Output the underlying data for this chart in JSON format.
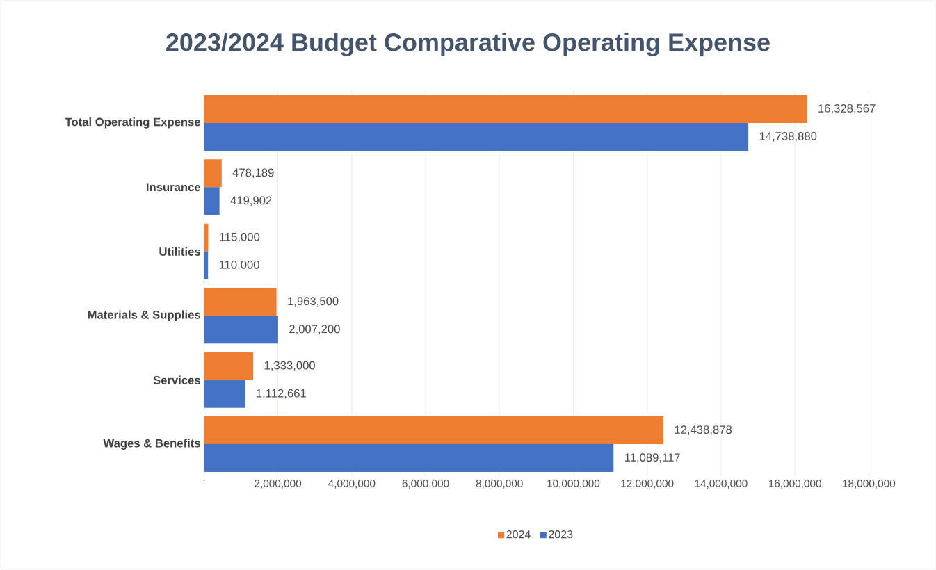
{
  "chart_data": {
    "type": "bar",
    "orientation": "horizontal",
    "title": "2023/2024 Budget Comparative Operating Expense",
    "categories": [
      "Total Operating Expense",
      "Insurance",
      "Utilities",
      "Materials & Supplies",
      "Services",
      "Wages & Benefits"
    ],
    "series": [
      {
        "name": "2024",
        "color": "#ed7d31",
        "values": [
          16328567,
          478189,
          115000,
          1963500,
          1333000,
          12438878
        ],
        "value_labels": [
          "16,328,567",
          "478,189",
          "115,000",
          "1,963,500",
          "1,333,000",
          "12,438,878"
        ]
      },
      {
        "name": "2023",
        "color": "#4472c4",
        "values": [
          14738880,
          419902,
          110000,
          2007200,
          1112661,
          11089117
        ],
        "value_labels": [
          "14,738,880",
          "419,902",
          "110,000",
          "2,007,200",
          "1,112,661",
          "11,089,117"
        ]
      }
    ],
    "xlim": [
      0,
      18000000
    ],
    "xticks": [
      {
        "value": 0,
        "label": "-"
      },
      {
        "value": 2000000,
        "label": "2,000,000"
      },
      {
        "value": 4000000,
        "label": "4,000,000"
      },
      {
        "value": 6000000,
        "label": "6,000,000"
      },
      {
        "value": 8000000,
        "label": "8,000,000"
      },
      {
        "value": 10000000,
        "label": "10,000,000"
      },
      {
        "value": 12000000,
        "label": "12,000,000"
      },
      {
        "value": 14000000,
        "label": "14,000,000"
      },
      {
        "value": 16000000,
        "label": "16,000,000"
      },
      {
        "value": 18000000,
        "label": "18,000,000"
      }
    ],
    "grid": "x",
    "legend": "bottom"
  }
}
